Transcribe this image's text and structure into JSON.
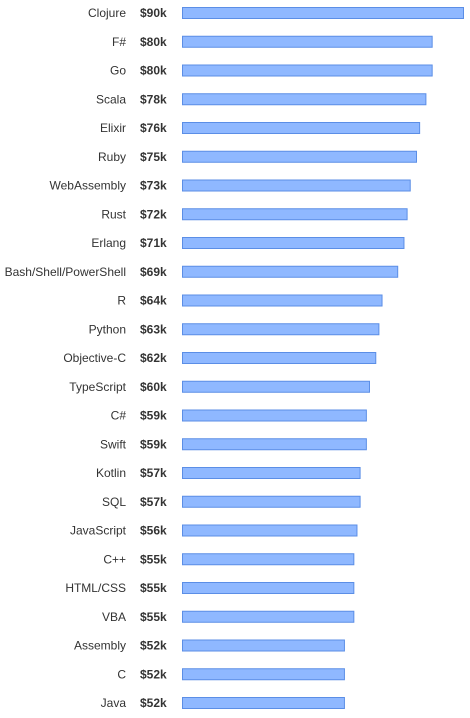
{
  "chart_data": {
    "type": "bar",
    "orientation": "horizontal",
    "title": "",
    "xlabel": "",
    "ylabel": "",
    "value_prefix": "$",
    "value_suffix": "k",
    "xlim": [
      0,
      90
    ],
    "grid": false,
    "legend": "none",
    "bar_color": "#8fb8ff",
    "bar_border_color": "#5b8ee6",
    "categories": [
      "Clojure",
      "F#",
      "Go",
      "Scala",
      "Elixir",
      "Ruby",
      "WebAssembly",
      "Rust",
      "Erlang",
      "Bash/Shell/PowerShell",
      "R",
      "Python",
      "Objective-C",
      "TypeScript",
      "C#",
      "Swift",
      "Kotlin",
      "SQL",
      "JavaScript",
      "C++",
      "HTML/CSS",
      "VBA",
      "Assembly",
      "C",
      "Java"
    ],
    "values": [
      90,
      80,
      80,
      78,
      76,
      75,
      73,
      72,
      71,
      69,
      64,
      63,
      62,
      60,
      59,
      59,
      57,
      57,
      56,
      55,
      55,
      55,
      52,
      52,
      52
    ],
    "value_labels": [
      "$90k",
      "$80k",
      "$80k",
      "$78k",
      "$76k",
      "$75k",
      "$73k",
      "$72k",
      "$71k",
      "$69k",
      "$64k",
      "$63k",
      "$62k",
      "$60k",
      "$59k",
      "$59k",
      "$57k",
      "$57k",
      "$56k",
      "$55k",
      "$55k",
      "$55k",
      "$52k",
      "$52k",
      "$52k"
    ]
  }
}
